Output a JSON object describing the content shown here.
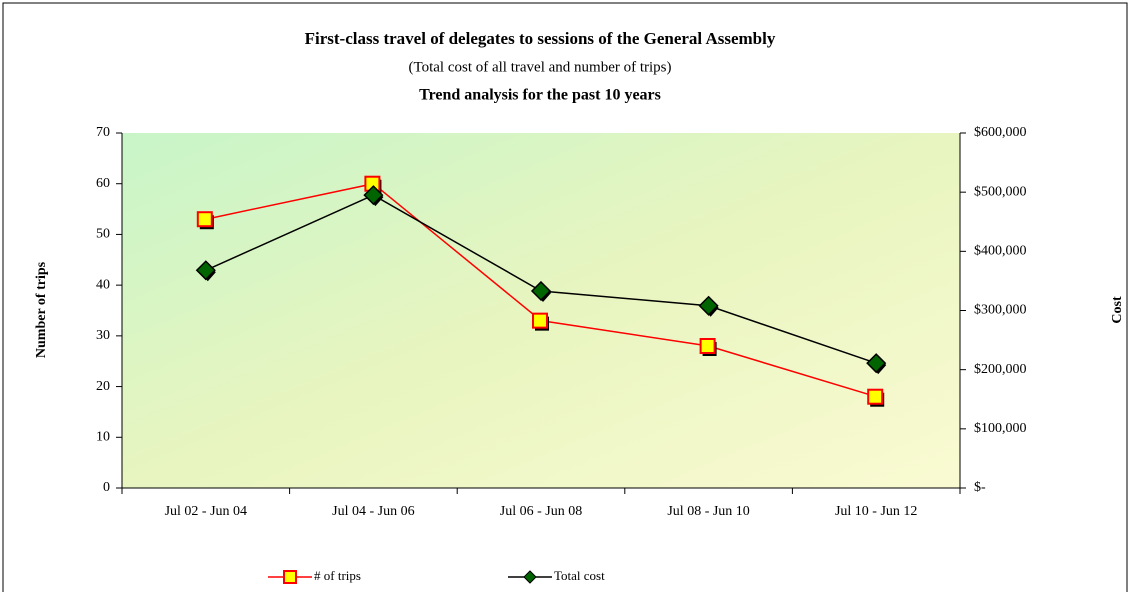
{
  "chart_data": {
    "type": "line",
    "title": "First-class travel of delegates to sessions of the General Assembly",
    "subtitle": "(Total cost of all travel and number of trips)",
    "subtitle2": "Trend analysis for the past 10 years",
    "ylabel": "Number of trips",
    "y2label": "Cost",
    "categories": [
      "Jul 02 - Jun 04",
      "Jul 04 - Jun 06",
      "Jul 06  - Jun 08",
      "Jul 08 - Jun 10",
      "Jul 10 - Jun 12"
    ],
    "ylim": [
      0,
      70
    ],
    "yticks": [
      0,
      10,
      20,
      30,
      40,
      50,
      60,
      70
    ],
    "y2lim": [
      0,
      600000
    ],
    "y2ticks": [
      {
        "value": 0,
        "label": "$-"
      },
      {
        "value": 100000,
        "label": "$100,000"
      },
      {
        "value": 200000,
        "label": "$200,000"
      },
      {
        "value": 300000,
        "label": "$300,000"
      },
      {
        "value": 400000,
        "label": "$400,000"
      },
      {
        "value": 500000,
        "label": "$500,000"
      },
      {
        "value": 600000,
        "label": "$600,000"
      }
    ],
    "legend": "bottom",
    "series": [
      {
        "name": "# of trips",
        "color": "#ff0000",
        "values": [
          53,
          60,
          33,
          28,
          18
        ]
      },
      {
        "name": "Total cost",
        "color": "#000000",
        "axis": "y2",
        "values": [
          368000,
          495000,
          333000,
          308000,
          211000
        ]
      }
    ]
  }
}
